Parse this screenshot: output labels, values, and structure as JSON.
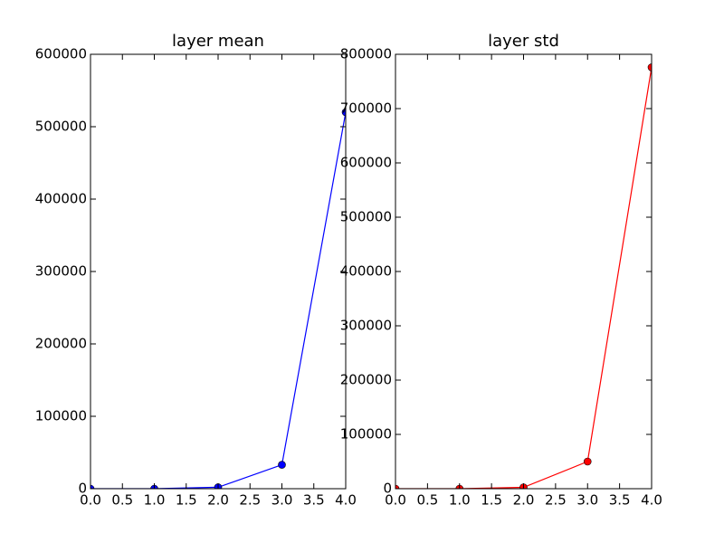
{
  "chart_data": [
    {
      "type": "line",
      "title": "layer mean",
      "x": [
        0,
        1,
        2,
        3,
        4
      ],
      "series": [
        {
          "color": "#0000ff",
          "values": [
            0,
            0,
            2000,
            33000,
            520000
          ]
        }
      ],
      "xlim": [
        0,
        4
      ],
      "ylim": [
        0,
        600000
      ],
      "xticks": [
        {
          "value": 0,
          "label": "0.0"
        },
        {
          "value": 0.5,
          "label": "0.5"
        },
        {
          "value": 1,
          "label": "1.0"
        },
        {
          "value": 1.5,
          "label": "1.5"
        },
        {
          "value": 2,
          "label": "2.0"
        },
        {
          "value": 2.5,
          "label": "2.5"
        },
        {
          "value": 3,
          "label": "3.0"
        },
        {
          "value": 3.5,
          "label": "3.5"
        },
        {
          "value": 4,
          "label": "4.0"
        }
      ],
      "yticks": [
        0,
        100000,
        200000,
        300000,
        400000,
        500000,
        600000
      ]
    },
    {
      "type": "line",
      "title": "layer std",
      "x": [
        0,
        1,
        2,
        3,
        4
      ],
      "series": [
        {
          "color": "#ff0000",
          "values": [
            0,
            0,
            2500,
            50000,
            776000
          ]
        }
      ],
      "xlim": [
        0,
        4
      ],
      "ylim": [
        0,
        800000
      ],
      "xticks": [
        {
          "value": 0,
          "label": "0.0"
        },
        {
          "value": 0.5,
          "label": "0.5"
        },
        {
          "value": 1,
          "label": "1.0"
        },
        {
          "value": 1.5,
          "label": "1.5"
        },
        {
          "value": 2,
          "label": "2.0"
        },
        {
          "value": 2.5,
          "label": "2.5"
        },
        {
          "value": 3,
          "label": "3.0"
        },
        {
          "value": 3.5,
          "label": "3.5"
        },
        {
          "value": 4,
          "label": "4.0"
        }
      ],
      "yticks": [
        0,
        100000,
        200000,
        300000,
        400000,
        500000,
        600000,
        700000,
        800000
      ]
    }
  ]
}
